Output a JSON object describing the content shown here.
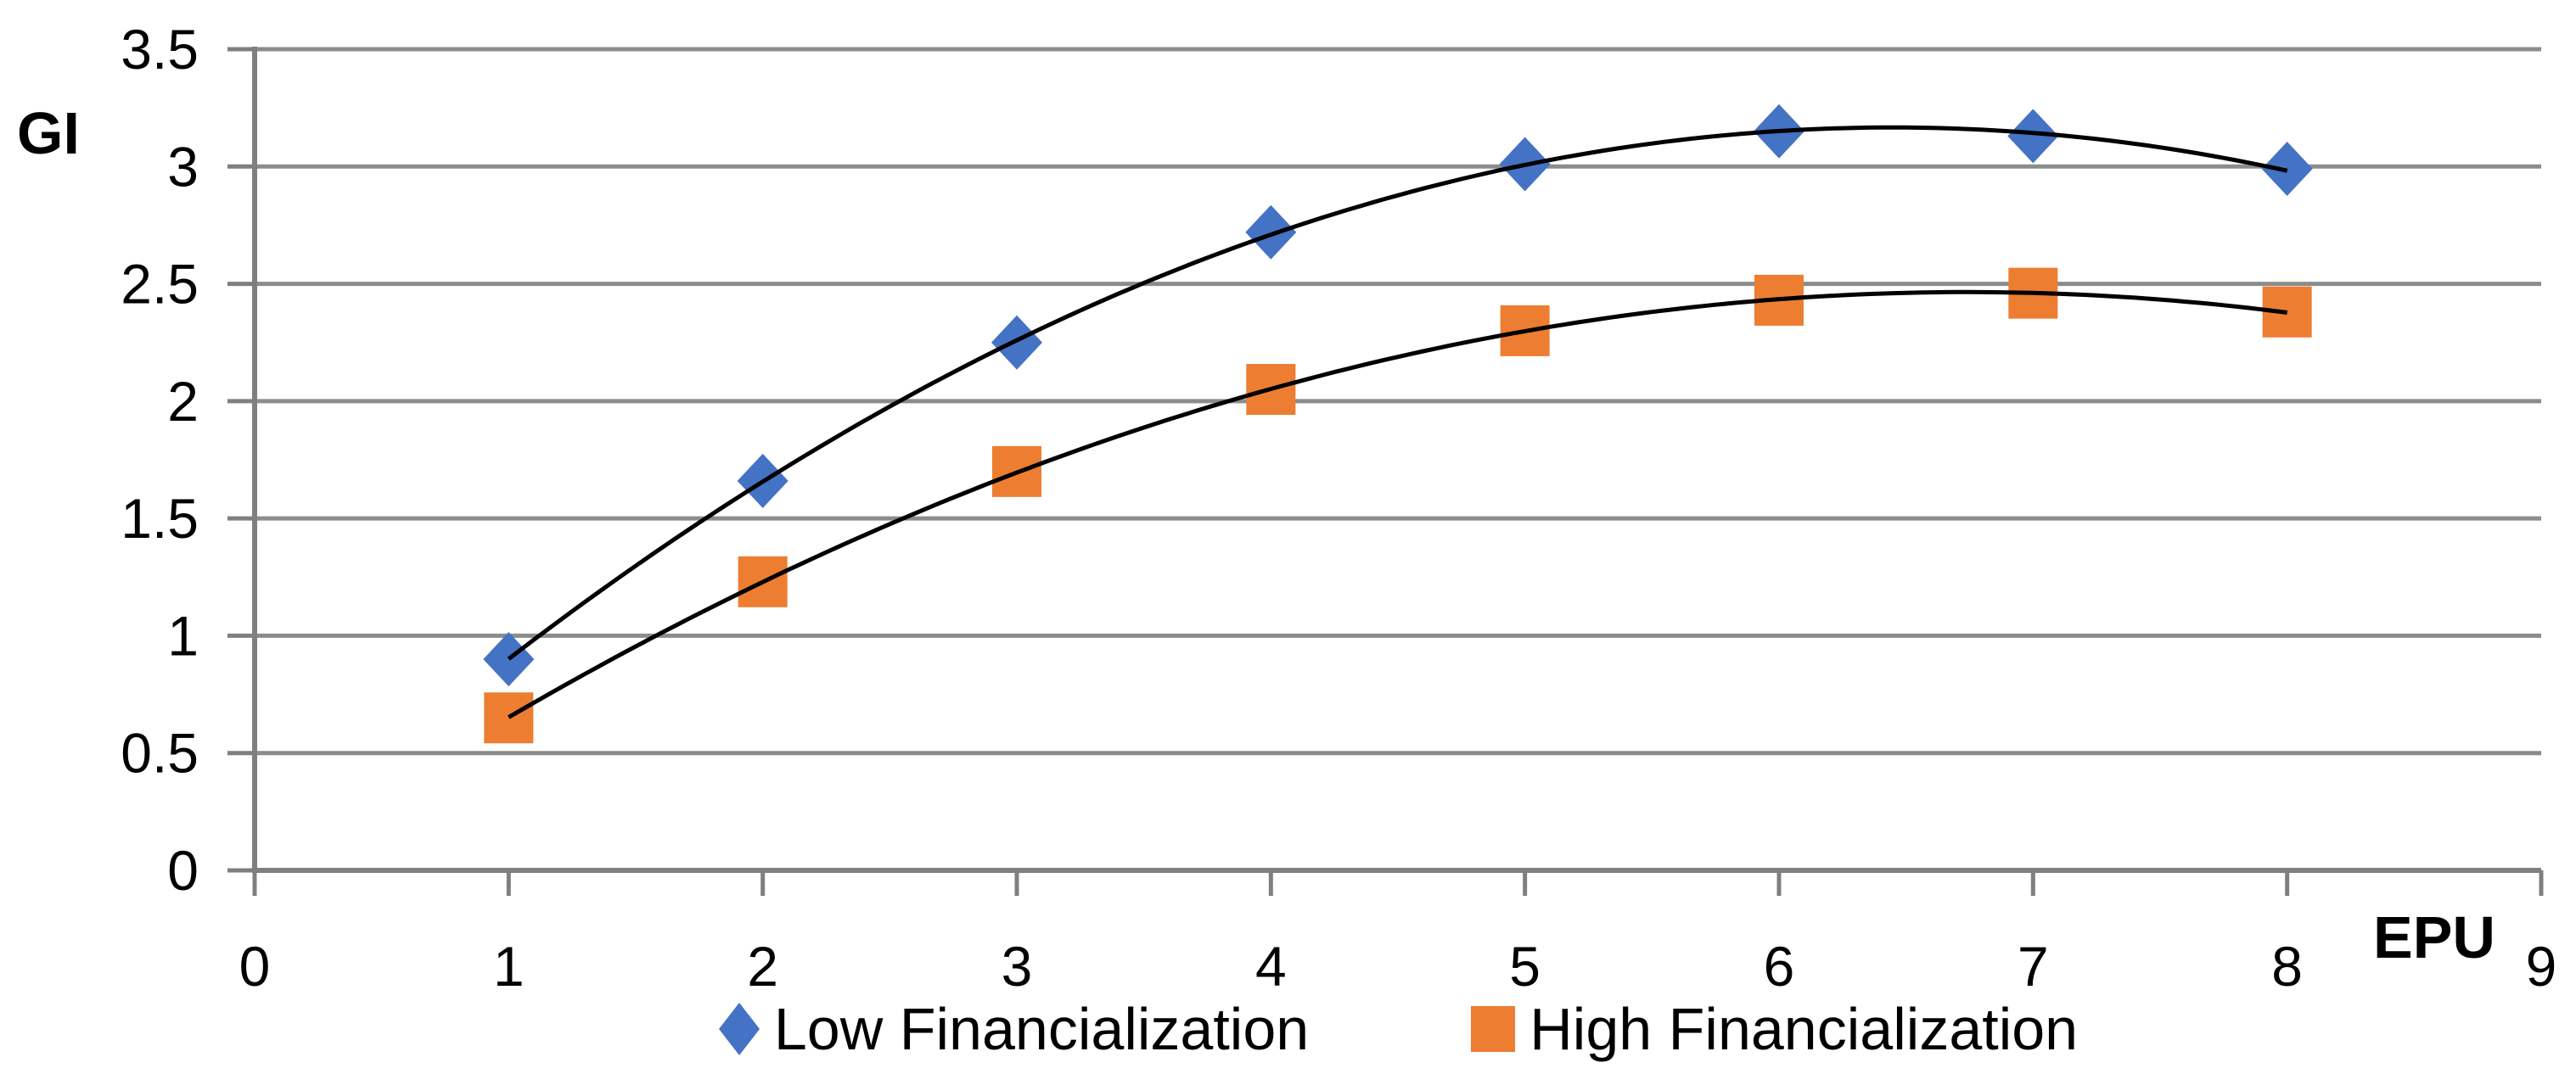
{
  "chart_data": {
    "type": "scatter",
    "title": "",
    "xlabel": "EPU",
    "ylabel": "GI",
    "xlim": [
      0,
      9
    ],
    "ylim": [
      0,
      3.5
    ],
    "x_ticks": [
      "0",
      "1",
      "2",
      "3",
      "4",
      "5",
      "6",
      "7",
      "8",
      "9"
    ],
    "y_ticks": [
      "0",
      "0.5",
      "1",
      "1.5",
      "2",
      "2.5",
      "3",
      "3.5"
    ],
    "grid": "horizontal-only",
    "legend_position": "bottom-center",
    "x": [
      1,
      2,
      3,
      4,
      5,
      6,
      7,
      8
    ],
    "series": [
      {
        "name": "Low Financialization",
        "marker": "diamond",
        "color": "#4472C4",
        "values": [
          0.9,
          1.66,
          2.25,
          2.72,
          3.01,
          3.15,
          3.13,
          2.99
        ],
        "trendline": "polynomial-order-2",
        "trendline_color": "#000000"
      },
      {
        "name": "High Financialization",
        "marker": "square",
        "color": "#ED7D31",
        "values": [
          0.65,
          1.23,
          1.7,
          2.05,
          2.3,
          2.43,
          2.46,
          2.38
        ],
        "trendline": "polynomial-order-2",
        "trendline_color": "#000000"
      }
    ],
    "colors": {
      "background": "#FFFFFF",
      "gridline": "#8C8C8C",
      "axis": "#7F7F7F",
      "tick": "#7F7F7F",
      "text": "#000000"
    }
  }
}
